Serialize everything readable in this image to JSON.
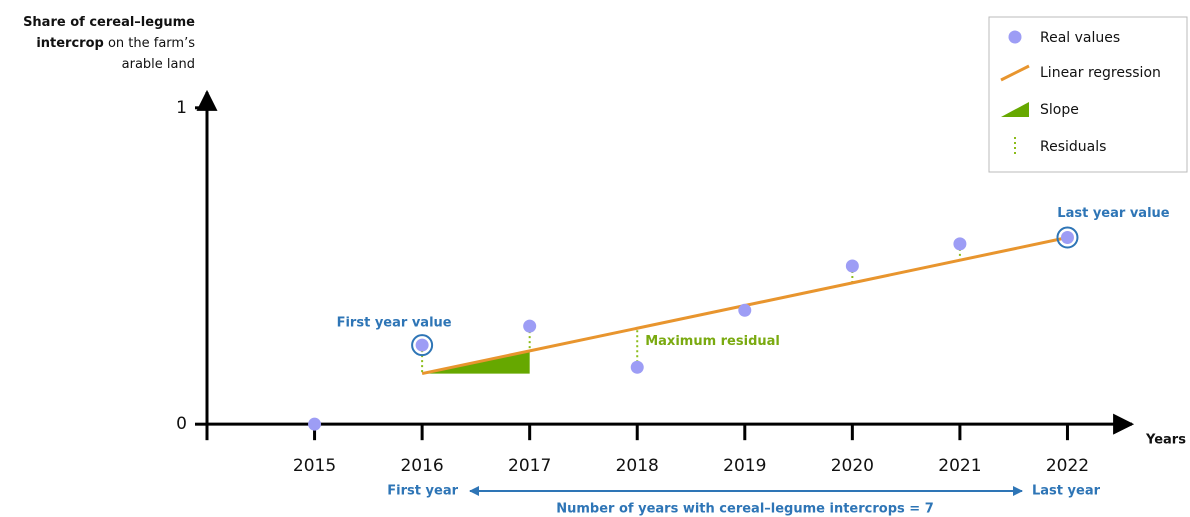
{
  "chart_data": {
    "type": "scatter",
    "y_label": {
      "bold": [
        "Share of cereal–legume",
        "intercrop"
      ],
      "normal": [
        "on the farm’s",
        "arable land"
      ]
    },
    "x_label": "Years",
    "x": [
      2015,
      2016,
      2017,
      2018,
      2019,
      2020,
      2021,
      2022
    ],
    "series": [
      {
        "name": "Real values",
        "color": "#9d9df5",
        "values": [
          0,
          0.25,
          0.31,
          0.18,
          0.36,
          0.5,
          0.57,
          0.59
        ]
      }
    ],
    "regression": {
      "name": "Linear regression",
      "color": "#e8952e",
      "x": [
        2016,
        2022
      ],
      "values": [
        0.16,
        0.59
      ]
    },
    "slope": {
      "name": "Slope",
      "color": "#66a800"
    },
    "residuals": {
      "name": "Residuals",
      "color": "#8cbc1a"
    },
    "xlim": [
      2014,
      2022.6
    ],
    "ylim": [
      -0.05,
      1.05
    ],
    "xticks": [
      2015,
      2016,
      2017,
      2018,
      2019,
      2020,
      2021,
      2022
    ],
    "yticks": [
      0,
      1
    ],
    "annotations": {
      "first_year_value": "First year value",
      "last_year_value": "Last year value",
      "maximum_residual": "Maximum residual",
      "first_year": "First year",
      "last_year": "Last year",
      "number_of_years": "Number of years with cereal–legume intercrops = 7"
    }
  }
}
